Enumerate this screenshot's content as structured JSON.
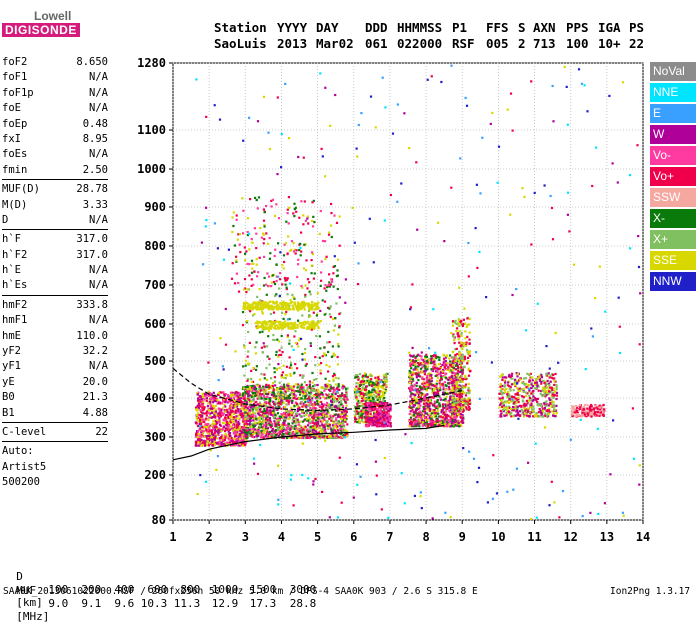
{
  "logo": {
    "top": "Lowell",
    "bottom": "DIGISONDE"
  },
  "header": {
    "labels": [
      "Station",
      "YYYY",
      "DAY",
      "DDD",
      "HHMMSS",
      "P1",
      "FFS",
      "S",
      "AXN",
      "PPS",
      "IGA",
      "PS"
    ],
    "values": [
      "SaoLuis",
      "2013",
      "Mar02",
      "061",
      "022000",
      "RSF",
      "005",
      "2",
      "713",
      "100",
      "10+",
      "22"
    ]
  },
  "params": [
    {
      "name": "foF2",
      "value": "8.650"
    },
    {
      "name": "foF1",
      "value": "N/A"
    },
    {
      "name": "foF1p",
      "value": "N/A"
    },
    {
      "name": "foE",
      "value": "N/A"
    },
    {
      "name": "foEp",
      "value": "0.48"
    },
    {
      "name": "fxI",
      "value": "8.95"
    },
    {
      "name": "foEs",
      "value": "N/A"
    },
    {
      "name": "fmin",
      "value": "2.50"
    },
    {
      "sep": true
    },
    {
      "name": "MUF(D)",
      "value": "28.78"
    },
    {
      "name": "M(D)",
      "value": "3.33"
    },
    {
      "name": "D",
      "value": "N/A"
    },
    {
      "sep": true
    },
    {
      "name": "h`F",
      "value": "317.0"
    },
    {
      "name": "h`F2",
      "value": "317.0"
    },
    {
      "name": "h`E",
      "value": "N/A"
    },
    {
      "name": "h`Es",
      "value": "N/A"
    },
    {
      "sep": true
    },
    {
      "name": "hmF2",
      "value": "333.8"
    },
    {
      "name": "hmF1",
      "value": "N/A"
    },
    {
      "name": "hmE",
      "value": "110.0"
    },
    {
      "name": "yF2",
      "value": "32.2"
    },
    {
      "name": "yF1",
      "value": "N/A"
    },
    {
      "name": "yE",
      "value": "20.0"
    },
    {
      "name": "B0",
      "value": "21.3"
    },
    {
      "name": "B1",
      "value": "4.88"
    },
    {
      "sep": true
    },
    {
      "name": "C-level",
      "value": "22"
    },
    {
      "sep": true
    },
    {
      "name": "Auto:",
      "value": ""
    },
    {
      "name": "Artist5",
      "value": ""
    },
    {
      "name": "500200",
      "value": ""
    }
  ],
  "legend": [
    {
      "label": "NoVal",
      "color": "#8c8c8c"
    },
    {
      "label": "NNE",
      "color": "#00e5ff"
    },
    {
      "label": "E",
      "color": "#3aa0ff"
    },
    {
      "label": "W",
      "color": "#b0009a"
    },
    {
      "label": "Vo-",
      "color": "#ff3aa0"
    },
    {
      "label": "Vo+",
      "color": "#f0004a"
    },
    {
      "label": "SSW",
      "color": "#f5a8a0"
    },
    {
      "label": "X-",
      "color": "#0a7a0a"
    },
    {
      "label": "X+",
      "color": "#80c060"
    },
    {
      "label": "SSE",
      "color": "#d8d800"
    },
    {
      "label": "NNW",
      "color": "#2020c8"
    }
  ],
  "footer": {
    "d_label": "D",
    "d_values": [
      "100",
      "200",
      "400",
      "600",
      "800",
      "1000",
      "1500",
      "3000"
    ],
    "d_unit": "[km]",
    "muf_label": "MUF",
    "muf_values": [
      "9.0",
      "9.1",
      "9.6",
      "10.3",
      "11.3",
      "12.9",
      "17.3",
      "28.8"
    ],
    "muf_unit": "[MHz]",
    "info_line": "SAA0K_2013061022000.RSF / 260fx256h 50 kHz 5.0 km / DPS-4 SAA0K 903 / 2.6 S 315.8 E",
    "version": "Ion2Png 1.3.17"
  },
  "chart_data": {
    "type": "scatter",
    "x_ticks": [
      1,
      2,
      3,
      4,
      5,
      6,
      7,
      8,
      9,
      10,
      11,
      12,
      13,
      14
    ],
    "y_ticks": [
      80,
      200,
      300,
      400,
      500,
      600,
      700,
      800,
      900,
      1000,
      1100,
      1280
    ],
    "xlim": [
      1,
      14
    ],
    "ylim": [
      80,
      1280
    ],
    "grid": true,
    "legend_position": "right",
    "clusters": [
      {
        "x0": 1.6,
        "x1": 3.0,
        "y0": 280,
        "y1": 420,
        "n": 900,
        "colors": [
          "#b0009a",
          "#f0004a",
          "#ff3aa0",
          "#d8d800"
        ]
      },
      {
        "x0": 2.9,
        "x1": 5.8,
        "y0": 300,
        "y1": 440,
        "n": 1600,
        "colors": [
          "#b0009a",
          "#d8d800",
          "#ff3aa0",
          "#0a7a0a",
          "#80c060",
          "#f0004a"
        ]
      },
      {
        "x0": 2.9,
        "x1": 5.6,
        "y0": 400,
        "y1": 700,
        "n": 350,
        "colors": [
          "#d8d800",
          "#f0004a",
          "#0a7a0a",
          "#80c060"
        ]
      },
      {
        "x0": 2.9,
        "x1": 5.0,
        "y0": 640,
        "y1": 660,
        "n": 260,
        "colors": [
          "#d8d800"
        ]
      },
      {
        "x0": 3.3,
        "x1": 5.0,
        "y0": 590,
        "y1": 610,
        "n": 180,
        "colors": [
          "#d8d800"
        ]
      },
      {
        "x0": 2.6,
        "x1": 5.6,
        "y0": 700,
        "y1": 930,
        "n": 220,
        "colors": [
          "#d8d800",
          "#f0004a",
          "#0a7a0a",
          "#ff3aa0"
        ]
      },
      {
        "x0": 6.0,
        "x1": 6.9,
        "y0": 340,
        "y1": 470,
        "n": 450,
        "colors": [
          "#d8d800",
          "#80c060",
          "#f0004a",
          "#0a7a0a"
        ]
      },
      {
        "x0": 6.3,
        "x1": 7.0,
        "y0": 330,
        "y1": 390,
        "n": 300,
        "colors": [
          "#f0004a",
          "#b0009a",
          "#ff3aa0"
        ]
      },
      {
        "x0": 7.5,
        "x1": 9.0,
        "y0": 330,
        "y1": 520,
        "n": 1100,
        "colors": [
          "#f0004a",
          "#d8d800",
          "#b0009a",
          "#0a7a0a",
          "#ff3aa0"
        ]
      },
      {
        "x0": 8.7,
        "x1": 9.2,
        "y0": 370,
        "y1": 620,
        "n": 260,
        "colors": [
          "#d8d800",
          "#80c060",
          "#f0004a"
        ]
      },
      {
        "x0": 10.0,
        "x1": 11.6,
        "y0": 355,
        "y1": 470,
        "n": 500,
        "colors": [
          "#f0004a",
          "#80c060",
          "#d8d800",
          "#b0009a"
        ]
      },
      {
        "x0": 12.0,
        "x1": 12.9,
        "y0": 355,
        "y1": 385,
        "n": 160,
        "colors": [
          "#f0004a",
          "#f5a8a0"
        ]
      },
      {
        "x0": 1.6,
        "x1": 14.0,
        "y0": 80,
        "y1": 1280,
        "n": 300,
        "colors": [
          "#2020c8",
          "#3aa0ff",
          "#00e5ff",
          "#f0004a",
          "#d8d800",
          "#b0009a"
        ]
      }
    ],
    "curve_solid": [
      [
        1,
        240
      ],
      [
        1.5,
        250
      ],
      [
        2,
        268
      ],
      [
        3,
        288
      ],
      [
        4,
        300
      ],
      [
        5,
        308
      ],
      [
        6,
        312
      ],
      [
        7,
        318
      ],
      [
        8,
        322
      ],
      [
        8.5,
        330
      ]
    ],
    "curve_dashed": [
      [
        1,
        480
      ],
      [
        1.5,
        440
      ],
      [
        2,
        410
      ],
      [
        3,
        385
      ],
      [
        4,
        372
      ],
      [
        5,
        368
      ],
      [
        6,
        372
      ],
      [
        7,
        382
      ],
      [
        8,
        400
      ],
      [
        9,
        420
      ]
    ]
  }
}
